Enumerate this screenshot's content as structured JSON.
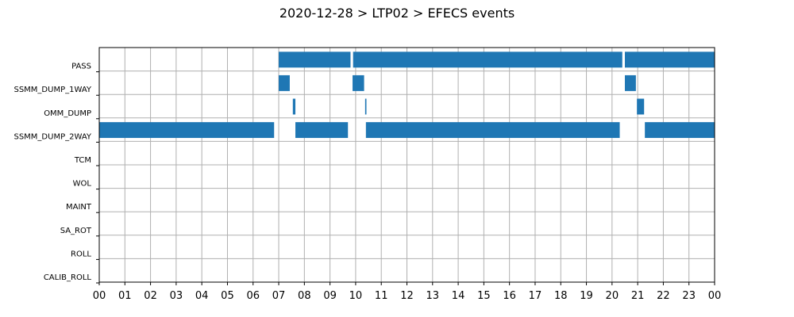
{
  "chart_data": {
    "type": "bar",
    "orientation": "horizontal-timeline",
    "title": "2020-12-28 > LTP02 > EFECS events",
    "xlabel": "",
    "ylabel": "",
    "xlim": [
      0,
      24
    ],
    "grid": true,
    "bar_color": "#1f77b4",
    "xtick_labels": [
      "00",
      "01",
      "02",
      "03",
      "04",
      "05",
      "06",
      "07",
      "08",
      "09",
      "10",
      "11",
      "12",
      "13",
      "14",
      "15",
      "16",
      "17",
      "18",
      "19",
      "20",
      "21",
      "22",
      "23",
      "00"
    ],
    "categories": [
      "PASS",
      "SSMM_DUMP_1WAY",
      "OMM_DUMP",
      "SSMM_DUMP_2WAY",
      "TCM",
      "WOL",
      "MAINT",
      "SA_ROT",
      "ROLL",
      "CALIB_ROLL"
    ],
    "series": [
      {
        "category": "PASS",
        "intervals": [
          [
            7.0,
            9.8
          ],
          [
            9.9,
            20.4
          ],
          [
            20.5,
            24.0
          ]
        ]
      },
      {
        "category": "SSMM_DUMP_1WAY",
        "intervals": [
          [
            7.0,
            7.43
          ],
          [
            9.88,
            10.33
          ],
          [
            20.5,
            20.93
          ]
        ]
      },
      {
        "category": "OMM_DUMP",
        "intervals": [
          [
            7.55,
            7.65
          ],
          [
            10.37,
            10.42
          ],
          [
            20.97,
            21.25
          ]
        ]
      },
      {
        "category": "SSMM_DUMP_2WAY",
        "intervals": [
          [
            0.0,
            6.82
          ],
          [
            7.65,
            9.7
          ],
          [
            10.4,
            20.3
          ],
          [
            21.28,
            24.0
          ]
        ]
      },
      {
        "category": "TCM",
        "intervals": []
      },
      {
        "category": "WOL",
        "intervals": []
      },
      {
        "category": "MAINT",
        "intervals": []
      },
      {
        "category": "SA_ROT",
        "intervals": []
      },
      {
        "category": "ROLL",
        "intervals": []
      },
      {
        "category": "CALIB_ROLL",
        "intervals": []
      }
    ]
  }
}
